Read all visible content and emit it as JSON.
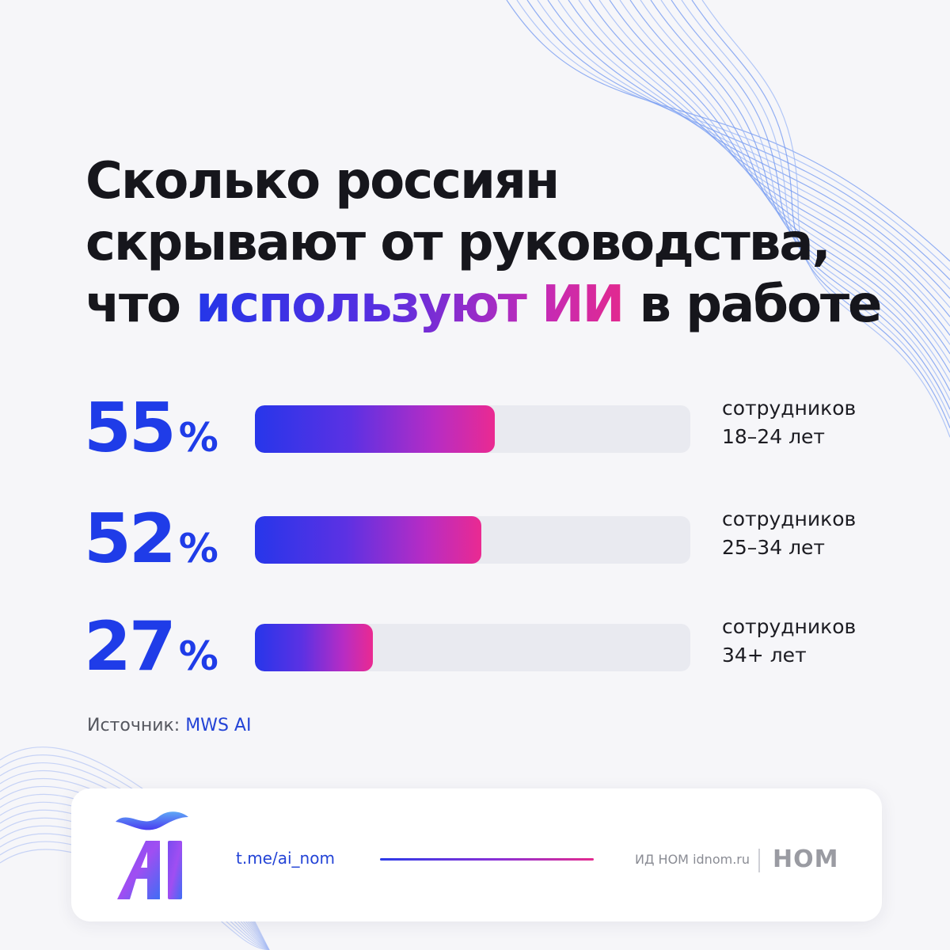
{
  "title": {
    "line1": "Сколько россиян",
    "line2": "скрывают от руководства,",
    "line3_start": "что ",
    "line3_highlight": "используют ИИ",
    "line3_end": " в работе"
  },
  "chart_data": {
    "type": "bar",
    "orientation": "horizontal",
    "unit": "%",
    "xlim": [
      0,
      100
    ],
    "categories": [
      "сотрудников 18–24 лет",
      "сотрудников 25–34 лет",
      "сотрудников 34+ лет"
    ],
    "values": [
      55,
      52,
      27
    ],
    "rows": [
      {
        "value": 55,
        "value_label": "55",
        "sign": "%",
        "label_line1": "сотрудников",
        "label_line2": "18–24 лет"
      },
      {
        "value": 52,
        "value_label": "52",
        "sign": "%",
        "label_line1": "сотрудников",
        "label_line2": "25–34 лет"
      },
      {
        "value": 27,
        "value_label": "27",
        "sign": "%",
        "label_line1": "сотрудников",
        "label_line2": "34+ лет"
      }
    ]
  },
  "source": {
    "label": "Источник: ",
    "name": "MWS AI"
  },
  "footer": {
    "link": "t.me/ai_nom",
    "publisher": "ИД НОМ idnom.ru",
    "brand": "НОМ",
    "logo_text": "Ай"
  },
  "colors": {
    "accent_blue": "#1f3ce8",
    "accent_pink": "#ea2a91",
    "track": "#e9eaf0",
    "background": "#f6f6f9"
  }
}
